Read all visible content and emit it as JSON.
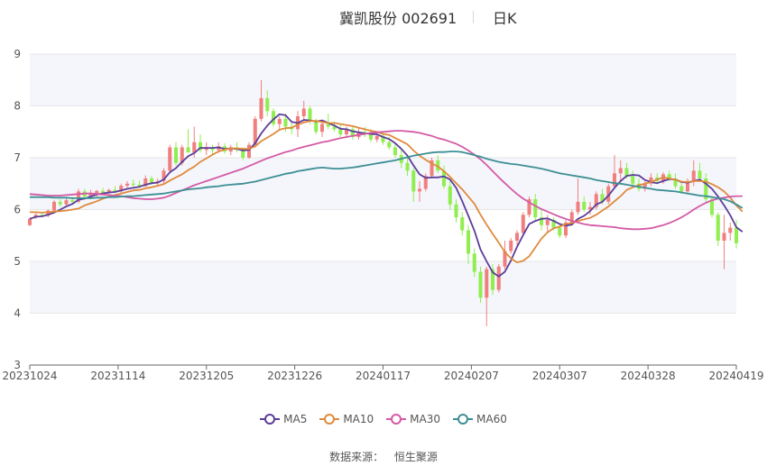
{
  "header": {
    "title": "冀凯股份 002691",
    "period": "日K"
  },
  "source": {
    "label": "数据来源：",
    "value": "恒生聚源"
  },
  "colors": {
    "up": "#f08080",
    "down": "#90ee50",
    "MA5": "#5b3d99",
    "MA10": "#e08a3c",
    "MA30": "#d45aa6",
    "MA60": "#3d8f94",
    "grid": "#e6e6e6",
    "band": "#f4f6fb"
  },
  "chart_data": {
    "type": "candlestick",
    "ylim": [
      3,
      9
    ],
    "yticks": [
      3,
      4,
      5,
      6,
      7,
      8,
      9
    ],
    "xtick_labels": [
      "20231024",
      "20231114",
      "20231205",
      "20231226",
      "20240117",
      "20240207",
      "20240307",
      "20240328",
      "20240419"
    ],
    "legend": [
      "MA5",
      "MA10",
      "MA30",
      "MA60"
    ],
    "legend_position": "bottom",
    "grid": true,
    "ohlc": [
      [
        5.7,
        5.85,
        5.68,
        5.82
      ],
      [
        5.85,
        5.93,
        5.82,
        5.9
      ],
      [
        5.9,
        5.95,
        5.86,
        5.88
      ],
      [
        5.88,
        6.0,
        5.85,
        5.98
      ],
      [
        5.98,
        6.18,
        5.95,
        6.15
      ],
      [
        6.15,
        6.2,
        6.05,
        6.1
      ],
      [
        6.1,
        6.22,
        6.05,
        6.18
      ],
      [
        6.18,
        6.25,
        6.12,
        6.15
      ],
      [
        6.15,
        6.4,
        6.12,
        6.35
      ],
      [
        6.35,
        6.4,
        6.22,
        6.25
      ],
      [
        6.25,
        6.38,
        6.2,
        6.3
      ],
      [
        6.3,
        6.38,
        6.25,
        6.36
      ],
      [
        6.36,
        6.42,
        6.28,
        6.32
      ],
      [
        6.32,
        6.4,
        6.3,
        6.38
      ],
      [
        6.38,
        6.45,
        6.33,
        6.35
      ],
      [
        6.35,
        6.5,
        6.32,
        6.46
      ],
      [
        6.46,
        6.55,
        6.4,
        6.5
      ],
      [
        6.5,
        6.58,
        6.42,
        6.48
      ],
      [
        6.48,
        6.56,
        6.42,
        6.45
      ],
      [
        6.45,
        6.66,
        6.44,
        6.6
      ],
      [
        6.6,
        6.65,
        6.48,
        6.52
      ],
      [
        6.52,
        6.6,
        6.45,
        6.55
      ],
      [
        6.55,
        6.8,
        6.5,
        6.75
      ],
      [
        6.75,
        7.25,
        6.7,
        7.2
      ],
      [
        7.2,
        7.3,
        6.85,
        6.9
      ],
      [
        6.9,
        7.25,
        6.85,
        7.2
      ],
      [
        7.2,
        7.55,
        7.15,
        7.1
      ],
      [
        7.1,
        7.6,
        7.0,
        7.3
      ],
      [
        7.3,
        7.45,
        7.1,
        7.15
      ],
      [
        7.15,
        7.3,
        7.05,
        7.2
      ],
      [
        7.2,
        7.25,
        7.05,
        7.15
      ],
      [
        7.15,
        7.3,
        7.1,
        7.22
      ],
      [
        7.22,
        7.28,
        7.08,
        7.12
      ],
      [
        7.12,
        7.25,
        7.05,
        7.2
      ],
      [
        7.2,
        7.3,
        7.1,
        7.15
      ],
      [
        7.15,
        7.2,
        6.95,
        7.0
      ],
      [
        7.0,
        7.3,
        6.98,
        7.25
      ],
      [
        7.25,
        7.8,
        7.2,
        7.75
      ],
      [
        7.75,
        8.5,
        7.7,
        8.15
      ],
      [
        8.15,
        8.3,
        7.8,
        7.9
      ],
      [
        7.9,
        7.95,
        7.6,
        7.65
      ],
      [
        7.65,
        7.8,
        7.55,
        7.75
      ],
      [
        7.75,
        7.85,
        7.5,
        7.6
      ],
      [
        7.6,
        7.7,
        7.45,
        7.55
      ],
      [
        7.55,
        7.9,
        7.4,
        7.8
      ],
      [
        7.8,
        8.1,
        7.7,
        7.95
      ],
      [
        7.95,
        8.0,
        7.65,
        7.7
      ],
      [
        7.7,
        7.75,
        7.45,
        7.5
      ],
      [
        7.5,
        7.7,
        7.4,
        7.65
      ],
      [
        7.65,
        7.85,
        7.55,
        7.6
      ],
      [
        7.6,
        7.7,
        7.5,
        7.55
      ],
      [
        7.55,
        7.65,
        7.4,
        7.45
      ],
      [
        7.45,
        7.6,
        7.38,
        7.55
      ],
      [
        7.55,
        7.62,
        7.35,
        7.4
      ],
      [
        7.4,
        7.58,
        7.35,
        7.5
      ],
      [
        7.5,
        7.6,
        7.4,
        7.45
      ],
      [
        7.45,
        7.55,
        7.3,
        7.35
      ],
      [
        7.35,
        7.5,
        7.3,
        7.42
      ],
      [
        7.42,
        7.48,
        7.25,
        7.3
      ],
      [
        7.3,
        7.4,
        7.15,
        7.2
      ],
      [
        7.2,
        7.3,
        7.0,
        7.05
      ],
      [
        7.05,
        7.15,
        6.8,
        6.9
      ],
      [
        6.9,
        7.0,
        6.65,
        6.75
      ],
      [
        6.75,
        6.8,
        6.15,
        6.35
      ],
      [
        6.35,
        6.55,
        6.15,
        6.4
      ],
      [
        6.4,
        6.7,
        6.35,
        6.65
      ],
      [
        6.65,
        7.0,
        6.6,
        6.95
      ],
      [
        6.95,
        7.05,
        6.7,
        6.75
      ],
      [
        6.75,
        6.85,
        6.4,
        6.45
      ],
      [
        6.45,
        6.55,
        6.0,
        6.1
      ],
      [
        6.1,
        6.2,
        5.75,
        5.85
      ],
      [
        5.85,
        5.95,
        5.5,
        5.6
      ],
      [
        5.6,
        5.7,
        4.95,
        5.15
      ],
      [
        5.15,
        5.25,
        4.7,
        4.8
      ],
      [
        4.8,
        4.9,
        4.2,
        4.3
      ],
      [
        4.3,
        4.9,
        3.75,
        4.85
      ],
      [
        4.85,
        4.95,
        4.35,
        4.45
      ],
      [
        4.45,
        4.95,
        4.4,
        4.9
      ],
      [
        4.9,
        5.4,
        4.85,
        5.2
      ],
      [
        5.2,
        5.45,
        5.15,
        5.4
      ],
      [
        5.4,
        5.6,
        5.3,
        5.55
      ],
      [
        5.55,
        5.95,
        5.5,
        5.9
      ],
      [
        5.9,
        6.25,
        5.85,
        6.2
      ],
      [
        6.2,
        6.3,
        5.8,
        5.85
      ],
      [
        5.85,
        6.0,
        5.6,
        5.7
      ],
      [
        5.7,
        5.9,
        5.55,
        5.8
      ],
      [
        5.8,
        5.85,
        5.6,
        5.65
      ],
      [
        5.65,
        5.7,
        5.45,
        5.5
      ],
      [
        5.5,
        5.8,
        5.45,
        5.75
      ],
      [
        5.75,
        6.0,
        5.7,
        5.95
      ],
      [
        5.95,
        6.6,
        5.9,
        6.15
      ],
      [
        6.15,
        6.25,
        5.95,
        6.0
      ],
      [
        6.0,
        6.15,
        5.9,
        6.05
      ],
      [
        6.05,
        6.35,
        6.0,
        6.3
      ],
      [
        6.3,
        6.4,
        6.1,
        6.15
      ],
      [
        6.15,
        6.5,
        6.1,
        6.45
      ],
      [
        6.45,
        7.05,
        6.4,
        6.7
      ],
      [
        6.7,
        6.95,
        6.55,
        6.8
      ],
      [
        6.8,
        6.9,
        6.6,
        6.65
      ],
      [
        6.65,
        6.75,
        6.45,
        6.5
      ],
      [
        6.5,
        6.6,
        6.35,
        6.4
      ],
      [
        6.4,
        6.55,
        6.35,
        6.5
      ],
      [
        6.5,
        6.7,
        6.45,
        6.62
      ],
      [
        6.62,
        6.7,
        6.5,
        6.55
      ],
      [
        6.55,
        6.72,
        6.5,
        6.68
      ],
      [
        6.68,
        6.75,
        6.55,
        6.6
      ],
      [
        6.6,
        6.7,
        6.4,
        6.45
      ],
      [
        6.45,
        6.55,
        6.3,
        6.35
      ],
      [
        6.35,
        6.6,
        6.3,
        6.55
      ],
      [
        6.55,
        6.95,
        6.45,
        6.75
      ],
      [
        6.75,
        6.9,
        6.55,
        6.6
      ],
      [
        6.6,
        6.7,
        6.15,
        6.2
      ],
      [
        6.2,
        6.25,
        5.85,
        5.9
      ],
      [
        5.9,
        5.95,
        5.3,
        5.4
      ],
      [
        5.4,
        5.9,
        4.85,
        5.55
      ],
      [
        5.55,
        5.75,
        5.4,
        5.65
      ],
      [
        5.65,
        5.8,
        5.25,
        5.35
      ]
    ],
    "series": [
      {
        "name": "MA5",
        "values": [
          5.82,
          5.86,
          5.87,
          5.9,
          5.94,
          6.0,
          6.06,
          6.11,
          6.19,
          6.21,
          6.25,
          6.29,
          6.31,
          6.33,
          6.34,
          6.37,
          6.4,
          6.42,
          6.44,
          6.48,
          6.51,
          6.52,
          6.58,
          6.72,
          6.8,
          6.92,
          7.03,
          7.09,
          7.19,
          7.19,
          7.19,
          7.2,
          7.17,
          7.18,
          7.17,
          7.14,
          7.15,
          7.28,
          7.47,
          7.62,
          7.74,
          7.84,
          7.82,
          7.69,
          7.67,
          7.73,
          7.72,
          7.7,
          7.72,
          7.67,
          7.62,
          7.56,
          7.55,
          7.51,
          7.49,
          7.47,
          7.46,
          7.45,
          7.4,
          7.36,
          7.28,
          7.17,
          7.04,
          6.85,
          6.68,
          6.61,
          6.62,
          6.62,
          6.64,
          6.58,
          6.42,
          6.16,
          5.88,
          5.59,
          5.23,
          5.0,
          4.79,
          4.71,
          4.8,
          5.02,
          5.28,
          5.51,
          5.72,
          5.78,
          5.82,
          5.83,
          5.78,
          5.72,
          5.69,
          5.71,
          5.82,
          5.88,
          5.97,
          6.1,
          6.15,
          6.27,
          6.42,
          6.55,
          6.65,
          6.67,
          6.66,
          6.57,
          6.53,
          6.51,
          6.55,
          6.59,
          6.58,
          6.53,
          6.52,
          6.55,
          6.58,
          6.5,
          6.4,
          6.25,
          6.08,
          5.89,
          5.66,
          5.57
        ]
      },
      {
        "name": "MA10",
        "values": [
          5.95,
          5.95,
          5.94,
          5.95,
          5.96,
          5.97,
          5.98,
          6.0,
          6.02,
          6.08,
          6.12,
          6.16,
          6.21,
          6.25,
          6.28,
          6.31,
          6.34,
          6.37,
          6.38,
          6.41,
          6.43,
          6.46,
          6.49,
          6.56,
          6.62,
          6.68,
          6.76,
          6.83,
          6.92,
          6.99,
          7.06,
          7.12,
          7.16,
          7.18,
          7.18,
          7.17,
          7.17,
          7.22,
          7.32,
          7.39,
          7.46,
          7.54,
          7.57,
          7.58,
          7.64,
          7.68,
          7.71,
          7.71,
          7.69,
          7.67,
          7.67,
          7.65,
          7.63,
          7.61,
          7.58,
          7.55,
          7.52,
          7.5,
          7.46,
          7.44,
          7.38,
          7.32,
          7.26,
          7.14,
          7.04,
          6.96,
          6.89,
          6.83,
          6.74,
          6.63,
          6.51,
          6.39,
          6.25,
          6.11,
          5.9,
          5.71,
          5.53,
          5.36,
          5.18,
          5.06,
          4.98,
          5.01,
          5.1,
          5.27,
          5.44,
          5.56,
          5.64,
          5.67,
          5.72,
          5.74,
          5.78,
          5.81,
          5.84,
          5.9,
          5.98,
          6.06,
          6.16,
          6.26,
          6.38,
          6.43,
          6.47,
          6.5,
          6.53,
          6.58,
          6.62,
          6.6,
          6.58,
          6.54,
          6.53,
          6.55,
          6.55,
          6.54,
          6.49,
          6.43,
          6.35,
          6.23,
          6.08,
          5.96
        ]
      },
      {
        "name": "MA30",
        "values": [
          6.3,
          6.29,
          6.28,
          6.27,
          6.27,
          6.27,
          6.28,
          6.29,
          6.3,
          6.31,
          6.31,
          6.3,
          6.29,
          6.28,
          6.27,
          6.26,
          6.24,
          6.22,
          6.21,
          6.2,
          6.2,
          6.21,
          6.23,
          6.27,
          6.32,
          6.37,
          6.42,
          6.47,
          6.51,
          6.55,
          6.59,
          6.63,
          6.67,
          6.71,
          6.75,
          6.79,
          6.84,
          6.89,
          6.94,
          6.99,
          7.03,
          7.07,
          7.11,
          7.14,
          7.18,
          7.21,
          7.24,
          7.27,
          7.3,
          7.32,
          7.35,
          7.38,
          7.4,
          7.42,
          7.44,
          7.46,
          7.48,
          7.49,
          7.5,
          7.51,
          7.52,
          7.52,
          7.51,
          7.5,
          7.48,
          7.45,
          7.42,
          7.38,
          7.35,
          7.31,
          7.27,
          7.21,
          7.14,
          7.06,
          6.97,
          6.86,
          6.74,
          6.62,
          6.51,
          6.4,
          6.3,
          6.21,
          6.14,
          6.07,
          6.01,
          5.96,
          5.91,
          5.86,
          5.82,
          5.78,
          5.75,
          5.72,
          5.7,
          5.69,
          5.68,
          5.67,
          5.66,
          5.64,
          5.63,
          5.62,
          5.62,
          5.63,
          5.64,
          5.67,
          5.7,
          5.74,
          5.79,
          5.85,
          5.92,
          6.0,
          6.07,
          6.13,
          6.18,
          6.21,
          6.23,
          6.25,
          6.26,
          6.26
        ]
      },
      {
        "name": "MA60",
        "values": [
          6.24,
          6.24,
          6.24,
          6.24,
          6.23,
          6.23,
          6.23,
          6.22,
          6.22,
          6.22,
          6.22,
          6.23,
          6.23,
          6.24,
          6.24,
          6.25,
          6.26,
          6.26,
          6.27,
          6.28,
          6.29,
          6.3,
          6.31,
          6.33,
          6.35,
          6.37,
          6.39,
          6.4,
          6.41,
          6.43,
          6.44,
          6.45,
          6.47,
          6.48,
          6.49,
          6.5,
          6.52,
          6.54,
          6.57,
          6.6,
          6.63,
          6.66,
          6.69,
          6.71,
          6.74,
          6.76,
          6.78,
          6.8,
          6.81,
          6.8,
          6.79,
          6.79,
          6.8,
          6.81,
          6.83,
          6.85,
          6.87,
          6.89,
          6.91,
          6.93,
          6.95,
          6.98,
          7.01,
          7.04,
          7.06,
          7.08,
          7.1,
          7.11,
          7.11,
          7.12,
          7.12,
          7.11,
          7.08,
          7.05,
          7.02,
          6.98,
          6.95,
          6.92,
          6.9,
          6.88,
          6.87,
          6.85,
          6.83,
          6.81,
          6.79,
          6.76,
          6.73,
          6.7,
          6.68,
          6.66,
          6.64,
          6.62,
          6.6,
          6.57,
          6.55,
          6.53,
          6.51,
          6.5,
          6.48,
          6.46,
          6.44,
          6.42,
          6.4,
          6.38,
          6.37,
          6.36,
          6.35,
          6.33,
          6.31,
          6.29,
          6.27,
          6.26,
          6.24,
          6.22,
          6.2,
          6.16,
          6.1,
          6.03
        ]
      }
    ]
  }
}
